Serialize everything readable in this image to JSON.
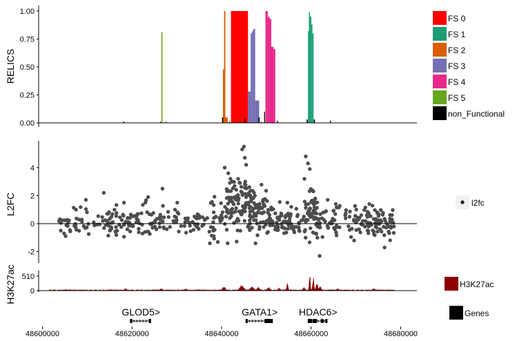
{
  "chart_data": [
    {
      "type": "bar",
      "panel": "relics",
      "ylabel": "RELICS",
      "ylim": [
        0,
        1.05
      ],
      "yticks": [
        "0.00",
        "0.25",
        "0.50",
        "0.75",
        "1.00"
      ],
      "xlim": [
        48600000,
        48683000
      ],
      "grid": false,
      "legend_position": "right",
      "legend": [
        {
          "label": "FS 0",
          "color": "#ff0000"
        },
        {
          "label": "FS 1",
          "color": "#1b9e77"
        },
        {
          "label": "FS 2",
          "color": "#d95f02"
        },
        {
          "label": "FS 3",
          "color": "#7570b3"
        },
        {
          "label": "FS 4",
          "color": "#e7298a"
        },
        {
          "label": "FS 5",
          "color": "#66a61e"
        },
        {
          "label": "non_Functional",
          "color": "#000000"
        }
      ],
      "series": [
        {
          "name": "FS 0",
          "segments": [
            {
              "x0": 48642100,
              "x1": 48645900,
              "y": 1.0
            }
          ]
        },
        {
          "name": "FS 1",
          "segments": [
            {
              "x0": 48659300,
              "x1": 48659500,
              "y": 0.82
            },
            {
              "x0": 48659500,
              "x1": 48659750,
              "y": 0.99
            },
            {
              "x0": 48659750,
              "x1": 48660050,
              "y": 0.95
            },
            {
              "x0": 48660050,
              "x1": 48660300,
              "y": 0.88
            },
            {
              "x0": 48660300,
              "x1": 48660550,
              "y": 0.8
            }
          ]
        },
        {
          "name": "FS 2",
          "segments": [
            {
              "x0": 48640300,
              "x1": 48640550,
              "y": 0.48
            },
            {
              "x0": 48640550,
              "x1": 48640850,
              "y": 1.0
            },
            {
              "x0": 48640850,
              "x1": 48641350,
              "y": 0.05
            },
            {
              "x0": 48641350,
              "x1": 48641950,
              "y": 0.0
            }
          ]
        },
        {
          "name": "FS 3",
          "segments": [
            {
              "x0": 48645900,
              "x1": 48646500,
              "y": 0.28
            },
            {
              "x0": 48646500,
              "x1": 48646800,
              "y": 0.8
            },
            {
              "x0": 48646800,
              "x1": 48647100,
              "y": 0.82
            },
            {
              "x0": 48647100,
              "x1": 48647500,
              "y": 0.84
            },
            {
              "x0": 48647500,
              "x1": 48648400,
              "y": 0.2
            }
          ]
        },
        {
          "name": "FS 4",
          "segments": [
            {
              "x0": 48649800,
              "x1": 48650300,
              "y": 1.0
            },
            {
              "x0": 48650300,
              "x1": 48650700,
              "y": 0.95
            },
            {
              "x0": 48650700,
              "x1": 48651100,
              "y": 0.93
            },
            {
              "x0": 48651100,
              "x1": 48651600,
              "y": 0.68
            },
            {
              "x0": 48651600,
              "x1": 48652000,
              "y": 0.66
            }
          ]
        },
        {
          "name": "FS 5",
          "segments": [
            {
              "x0": 48626550,
              "x1": 48626800,
              "y": 0.81
            }
          ]
        },
        {
          "name": "non_Functional",
          "segments": [
            {
              "x0": 48640100,
              "x1": 48640350,
              "y": 0.05
            },
            {
              "x0": 48645100,
              "x1": 48645300,
              "y": 0.04
            },
            {
              "x0": 48648250,
              "x1": 48648500,
              "y": 0.05
            },
            {
              "x0": 48649500,
              "x1": 48649700,
              "y": 0.1
            },
            {
              "x0": 48652400,
              "x1": 48652600,
              "y": 0.02
            },
            {
              "x0": 48659000,
              "x1": 48659250,
              "y": 0.03
            },
            {
              "x0": 48660600,
              "x1": 48660850,
              "y": 0.03
            },
            {
              "x0": 48618000,
              "x1": 48618300,
              "y": 0.01
            },
            {
              "x0": 48626300,
              "x1": 48626500,
              "y": 0.01
            },
            {
              "x0": 48627500,
              "x1": 48627700,
              "y": 0.01
            },
            {
              "x0": 48641700,
              "x1": 48641900,
              "y": 0.01
            },
            {
              "x0": 48648800,
              "x1": 48649000,
              "y": 0.01
            },
            {
              "x0": 48664200,
              "x1": 48664400,
              "y": 0.02
            }
          ]
        }
      ]
    },
    {
      "type": "scatter",
      "panel": "l2fc",
      "ylabel": "L2FC",
      "ylim": [
        -2.6,
        5.9
      ],
      "yticks": [
        -2,
        0,
        2,
        4
      ],
      "xlim": [
        48600000,
        48683000
      ],
      "reference_line_y": 0,
      "grid": false,
      "legend_position": "right",
      "legend": [
        {
          "label": "l2fc",
          "color": "#000000"
        }
      ],
      "point_color": "#4d4d4d",
      "seed": 11,
      "clusters": [
        {
          "x0": 48603500,
          "x1": 48609500,
          "n": 28,
          "mean": 0.0,
          "sd": 0.5
        },
        {
          "x0": 48609500,
          "x1": 48614500,
          "n": 18,
          "mean": 0.1,
          "sd": 0.45
        },
        {
          "x0": 48614500,
          "x1": 48619500,
          "n": 42,
          "mean": 0.0,
          "sd": 0.5
        },
        {
          "x0": 48619500,
          "x1": 48625000,
          "n": 36,
          "mean": 0.2,
          "sd": 0.5
        },
        {
          "x0": 48625000,
          "x1": 48631000,
          "n": 32,
          "mean": 0.1,
          "sd": 0.5
        },
        {
          "x0": 48631000,
          "x1": 48637000,
          "n": 30,
          "mean": 0.1,
          "sd": 0.5
        },
        {
          "x0": 48637000,
          "x1": 48641000,
          "n": 30,
          "mean": 0.4,
          "sd": 0.7
        },
        {
          "x0": 48641000,
          "x1": 48645500,
          "n": 80,
          "mean": 1.4,
          "sd": 1.0
        },
        {
          "x0": 48645500,
          "x1": 48650000,
          "n": 70,
          "mean": 0.9,
          "sd": 0.9
        },
        {
          "x0": 48650000,
          "x1": 48655000,
          "n": 55,
          "mean": 0.2,
          "sd": 0.5
        },
        {
          "x0": 48655000,
          "x1": 48658500,
          "n": 26,
          "mean": 0.1,
          "sd": 0.4
        },
        {
          "x0": 48658500,
          "x1": 48661500,
          "n": 60,
          "mean": 0.6,
          "sd": 0.8
        },
        {
          "x0": 48661500,
          "x1": 48666500,
          "n": 38,
          "mean": 0.2,
          "sd": 0.5
        },
        {
          "x0": 48667500,
          "x1": 48672500,
          "n": 34,
          "mean": 0.0,
          "sd": 0.5
        },
        {
          "x0": 48672500,
          "x1": 48678500,
          "n": 70,
          "mean": 0.1,
          "sd": 0.5
        }
      ],
      "extra_points": [
        [
          48604000,
          0.3
        ],
        [
          48607500,
          1.0
        ],
        [
          48609700,
          1.7
        ],
        [
          48613700,
          2.2
        ],
        [
          48618200,
          1.5
        ],
        [
          48623600,
          1.9
        ],
        [
          48626800,
          2.5
        ],
        [
          48630100,
          1.5
        ],
        [
          48640700,
          4.0
        ],
        [
          48641500,
          3.6
        ],
        [
          48643700,
          3.2
        ],
        [
          48644600,
          5.3
        ],
        [
          48645000,
          5.5
        ],
        [
          48645200,
          4.7
        ],
        [
          48645500,
          4.2
        ],
        [
          48646200,
          2.6
        ],
        [
          48644100,
          2.9
        ],
        [
          48658800,
          4.8
        ],
        [
          48659300,
          4.3
        ],
        [
          48659700,
          3.9
        ],
        [
          48658500,
          3.2
        ],
        [
          48661000,
          -0.7
        ],
        [
          48661400,
          -1.0
        ],
        [
          48661900,
          -2.3
        ],
        [
          48660500,
          2.3
        ],
        [
          48663700,
          1.7
        ],
        [
          48665500,
          1.4
        ],
        [
          48669600,
          -1.2
        ],
        [
          48673000,
          1.4
        ],
        [
          48676400,
          -1.7
        ],
        [
          48674800,
          0.8
        ]
      ]
    },
    {
      "type": "area",
      "panel": "h3k27ac",
      "ylabel": "H3K27ac",
      "ylim": [
        0,
        720
      ],
      "yticks": [
        0,
        510
      ],
      "xlim": [
        48600000,
        48683000
      ],
      "grid": false,
      "legend_position": "right",
      "legend": [
        {
          "label": "H3K27ac",
          "color": "#8b0000"
        }
      ],
      "fill_color": "#8b0000",
      "baseline_level": 35,
      "peaks": [
        {
          "x": 48640500,
          "height": 130,
          "width": 800
        },
        {
          "x": 48644500,
          "height": 170,
          "width": 1100
        },
        {
          "x": 48646800,
          "height": 140,
          "width": 900
        },
        {
          "x": 48648200,
          "height": 110,
          "width": 700
        },
        {
          "x": 48650500,
          "height": 90,
          "width": 700
        },
        {
          "x": 48652800,
          "height": 85,
          "width": 600
        },
        {
          "x": 48654700,
          "height": 260,
          "width": 350
        },
        {
          "x": 48658400,
          "height": 110,
          "width": 500
        },
        {
          "x": 48659700,
          "height": 620,
          "width": 300
        },
        {
          "x": 48660500,
          "height": 450,
          "width": 400
        },
        {
          "x": 48661300,
          "height": 280,
          "width": 500
        },
        {
          "x": 48662000,
          "height": 130,
          "width": 600
        },
        {
          "x": 48618500,
          "height": 60,
          "width": 500
        },
        {
          "x": 48626500,
          "height": 55,
          "width": 500
        },
        {
          "x": 48632000,
          "height": 50,
          "width": 500
        },
        {
          "x": 48666000,
          "height": 50,
          "width": 500
        },
        {
          "x": 48674000,
          "height": 45,
          "width": 500
        }
      ]
    },
    {
      "type": "gene_track",
      "panel": "genes",
      "xlabel": "",
      "xlim": [
        48600000,
        48683000
      ],
      "xticks": [
        48600000,
        48620000,
        48640000,
        48660000,
        48680000
      ],
      "grid": false,
      "legend_position": "right",
      "legend": [
        {
          "label": "Genes",
          "color": "#000000"
        }
      ],
      "genes": [
        {
          "label": "GLOD5>",
          "start": 48619800,
          "end": 48624200,
          "exons": [
            48619800,
            48624000
          ]
        },
        {
          "label": "GATA1>",
          "start": 48645600,
          "end": 48651400,
          "exons": [
            48645600,
            48649900,
            48650300,
            48650700,
            48651200
          ]
        },
        {
          "label": "HDAC6>",
          "start": 48659500,
          "end": 48663600,
          "exons": [
            48659500,
            48660000,
            48660600,
            48661000,
            48662500,
            48663400
          ]
        }
      ]
    }
  ]
}
